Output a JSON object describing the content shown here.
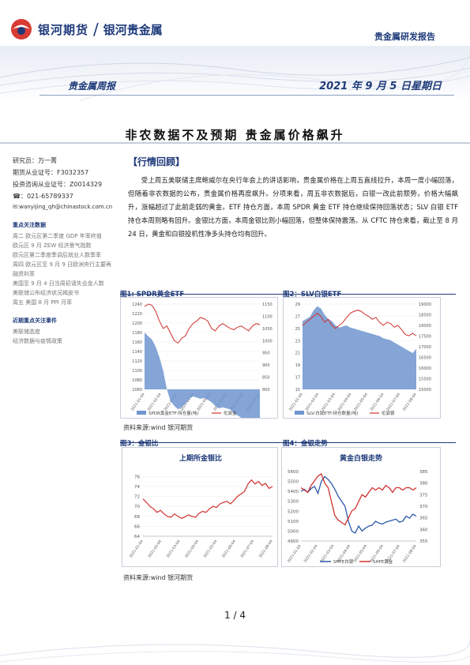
{
  "header": {
    "brand": "银河期货",
    "separator": "/",
    "brand_sub": "银河贵金属",
    "report_type": "贵金属研发报告",
    "weekly": "贵金属周报",
    "date": "2021 年 9 月 5 日星期日"
  },
  "title": "非农数据不及预期   贵金属价格飙升",
  "sidebar": {
    "researcher": "研究员：万一菁",
    "license": "期货从业证号：F3032357",
    "consult": "投资咨询从业证号：Z0014329",
    "phone": "☎：021-65789337",
    "email": "✉:wanyijing_qh@chinastock.com.cn",
    "data_head": "重点关注数据",
    "data_items": [
      "周二 欧元区第二季度 GDP 年率终值",
      "欧元区 9 月 ZEW 经济景气指数",
      "欧元区第二季度季调后就业人数季率",
      "周四 欧元区至 9 月 9 日欧洲央行主要再融资利率",
      "美国至 9 月 4 日当周初请失业金人数",
      "美联储公布经济状况褐皮书",
      "周五 美国 8 月 PPI 月率"
    ],
    "event_head": "近期重点关注事件",
    "event_items": [
      "美联储态度",
      "经济数据与疫情政策"
    ]
  },
  "section_head": "【行情回顾】",
  "paragraph": "受上周五美联储主席鲍威尔在央行年会上的讲话影响，贵金属价格在上周五直线拉升，本周一度小幅回落，但随着非农数据的公布，贵金属价格再度飙升。分项来看，周五非农数据后，白银一改此前颓势，价格大幅飙升，涨幅超过了此前走弱的黄金。ETF 持仓方面，本周 SPDR 黄金 ETF 持仓继续保持回落状态；SLV 白银 ETF 持仓本周则略有回升。金银比方面，本周金银比则小幅回落，但整体保持震荡。从 CFTC 持仓来看，截止至 8 月 24 日，黄金和白银投机性净多头持仓均有回升。",
  "figures": {
    "fig1_label": "图1: SPDR黄金ETF",
    "fig2_label": "图2：SLV白银ETF",
    "fig3_label": "图3：金银比",
    "fig4_label": "图4：金银走势",
    "source1": "资料来源:wind   银河期货",
    "source2": "资料来源:wind   银河期货",
    "fig1_legend_a": "SPDR黄金ETF:持仓量(吨)",
    "fig1_legend_b": "伦敦金",
    "fig2_legend_a": "SLV:白银ETF:持仓数量(吨)",
    "fig2_legend_b": "伦敦银",
    "fig3_title": "上期所金银比",
    "fig4_title": "黄金白银走势",
    "fig4_legend_a": "SHFE白银",
    "fig4_legend_b": "SHFE黄金"
  },
  "chart_data": [
    {
      "type": "area",
      "name": "fig1",
      "y_left_ticks": [
        "1240",
        "1220",
        "1200",
        "1180",
        "1160",
        "1140",
        "1120",
        "1100",
        "1080",
        "1060"
      ],
      "y_right_ticks": [
        "1150",
        "1100",
        "1050",
        "1000",
        "950",
        "900",
        "850",
        "800"
      ],
      "x_ticks": [
        "2021-01-04",
        "2021-02-04",
        "2021-03-04",
        "2021-04-04",
        "2021-05-04",
        "2021-06-04",
        "2021-07-04",
        "2021-08-04"
      ],
      "series": [
        {
          "name": "SPDR黄金ETF:持仓量(吨)",
          "axis": "left",
          "values": [
            1180,
            1172,
            1165,
            1150,
            1128,
            1100,
            1060,
            1035,
            1025,
            1018,
            1022,
            1030,
            1040,
            1045,
            1043,
            1040,
            1042,
            1038,
            1033,
            1025,
            1020,
            1022,
            1020,
            1018,
            1010,
            1005,
            1000,
            998,
            995,
            990,
            985,
            982
          ]
        },
        {
          "name": "伦敦金",
          "axis": "right",
          "values": [
            1140,
            1150,
            1145,
            1120,
            1080,
            1050,
            1060,
            1030,
            1000,
            990,
            1010,
            1020,
            1050,
            1070,
            1080,
            1095,
            1090,
            1080,
            1050,
            1040,
            1060,
            1070,
            1060,
            1050,
            1045,
            1055,
            1060,
            1050,
            1040,
            1060,
            1070,
            1065
          ]
        }
      ]
    },
    {
      "type": "area",
      "name": "fig2",
      "y_left_ticks": [
        "29",
        "27",
        "25",
        "23",
        "21",
        "19",
        "17",
        "15"
      ],
      "y_right_ticks": [
        "19000",
        "18500",
        "18000",
        "17500",
        "17000",
        "16500",
        "16000",
        "15500",
        "15000"
      ],
      "x_ticks": [
        "2021-01-04",
        "2021-02-04",
        "2021-03-04",
        "2021-04-04",
        "2021-05-04",
        "2021-06-04",
        "2021-07-04",
        "2021-08-04"
      ],
      "series": [
        {
          "name": "SLV:白银ETF:持仓数量(吨)",
          "axis": "right",
          "values": [
            18200,
            18300,
            18400,
            18700,
            18900,
            18800,
            18500,
            18300,
            18200,
            18000,
            17900,
            17950,
            18000,
            17900,
            17850,
            17800,
            17750,
            17700,
            17650,
            17600,
            17550,
            17500,
            17400,
            17350,
            17300,
            17200,
            17100,
            17000,
            16900,
            16800,
            16700,
            16900
          ]
        },
        {
          "name": "伦敦银",
          "axis": "left",
          "values": [
            25.5,
            26,
            26.5,
            27,
            27.5,
            27,
            26,
            26.5,
            25.5,
            25,
            25.5,
            26,
            26.8,
            27.5,
            27.8,
            28,
            27.8,
            27.3,
            27,
            26.5,
            26.8,
            26,
            25.5,
            26,
            25.8,
            25.2,
            25.5,
            24.8,
            24,
            23.8,
            24.2,
            23.8
          ]
        }
      ]
    },
    {
      "type": "line",
      "name": "fig3",
      "title": "上期所金银比",
      "y_ticks": [
        76,
        74,
        72,
        70,
        68,
        66,
        64
      ],
      "ylim": [
        64,
        77
      ],
      "x_ticks": [
        "2021-01-04",
        "2021-02-04",
        "2021-03-04",
        "2021-04-04",
        "2021-05-04",
        "2021-06-04",
        "2021-07-04",
        "2021-08-04"
      ],
      "values": [
        71.5,
        70.8,
        70,
        69.5,
        68.8,
        69.2,
        68.5,
        68,
        67.8,
        68.5,
        68,
        67.6,
        67.9,
        68.3,
        68,
        67.8,
        68.6,
        69,
        68.8,
        69.5,
        70,
        69.8,
        70.5,
        70.8,
        71,
        70.5,
        71.2,
        72,
        72.5,
        73,
        74.5,
        75.3,
        74.5,
        75,
        74.2,
        74.6,
        73.6,
        74
      ]
    },
    {
      "type": "line",
      "name": "fig4",
      "title": "黄金白银走势",
      "y_left_ticks": [
        5600,
        5500,
        5400,
        5300,
        5200,
        5100,
        5000,
        4900
      ],
      "y_right_ticks": [
        385,
        380,
        375,
        370,
        365,
        360,
        355
      ],
      "x_ticks": [
        "2021-01-04",
        "2021-02-04",
        "2021-03-04",
        "2021-04-04",
        "2021-05-04",
        "2021-06-04",
        "2021-07-04",
        "2021-08-04"
      ],
      "series": [
        {
          "name": "SHFE白银",
          "axis": "left",
          "values": [
            5400,
            5420,
            5390,
            5430,
            5450,
            5380,
            5500,
            5550,
            5520,
            5480,
            5420,
            5350,
            5300,
            5250,
            5100,
            5000,
            4980,
            5050,
            5000,
            5030,
            5050,
            5060,
            5100,
            5080,
            5070,
            5090,
            5100,
            5110,
            5120,
            5090,
            5100,
            5150,
            5130,
            5170,
            5150
          ]
        },
        {
          "name": "SHFE黄金",
          "axis": "right",
          "values": [
            378,
            377,
            376,
            379,
            381,
            383,
            384,
            380,
            378,
            372,
            366,
            364,
            363,
            362,
            365,
            368,
            369,
            372,
            375,
            374,
            376,
            378,
            377,
            378,
            377,
            379,
            378,
            376,
            378,
            378,
            377,
            378,
            378,
            377,
            378
          ]
        }
      ]
    }
  ],
  "page": "1 / 4"
}
